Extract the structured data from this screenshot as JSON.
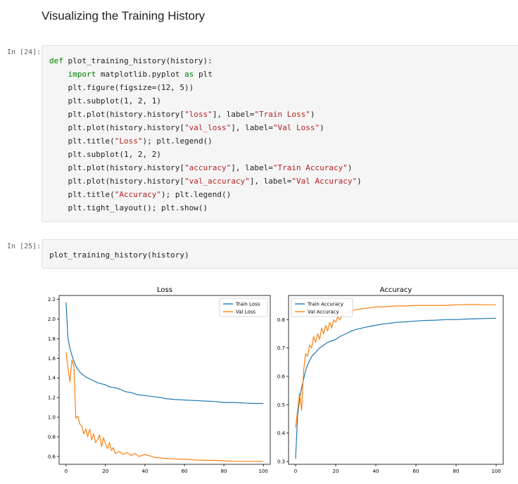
{
  "markdown": {
    "heading": "Visualizing the Training History"
  },
  "cells": [
    {
      "prompt": "In [24]:",
      "lines": [
        [
          [
            "kw",
            "def"
          ],
          [
            "p",
            " plot_training_history(history):"
          ]
        ],
        [
          [
            "p",
            "    "
          ],
          [
            "kw",
            "import"
          ],
          [
            "p",
            " matplotlib.pyplot "
          ],
          [
            "kw",
            "as"
          ],
          [
            "p",
            " plt"
          ]
        ],
        [
          [
            "p",
            "    plt.figure(figsize=(12, 5))"
          ]
        ],
        [
          [
            "p",
            "    plt.subplot(1, 2, 1)"
          ]
        ],
        [
          [
            "p",
            "    plt.plot(history.history["
          ],
          [
            "str",
            "\"loss\""
          ],
          [
            "p",
            "], label="
          ],
          [
            "str",
            "\"Train Loss\""
          ],
          [
            "p",
            ")"
          ]
        ],
        [
          [
            "p",
            "    plt.plot(history.history["
          ],
          [
            "str",
            "\"val_loss\""
          ],
          [
            "p",
            "], label="
          ],
          [
            "str",
            "\"Val Loss\""
          ],
          [
            "p",
            ")"
          ]
        ],
        [
          [
            "p",
            "    plt.title("
          ],
          [
            "str",
            "\"Loss\""
          ],
          [
            "p",
            "); plt.legend()"
          ]
        ],
        [
          [
            "p",
            "    plt.subplot(1, 2, 2)"
          ]
        ],
        [
          [
            "p",
            "    plt.plot(history.history["
          ],
          [
            "str",
            "\"accuracy\""
          ],
          [
            "p",
            "], label="
          ],
          [
            "str",
            "\"Train Accuracy\""
          ],
          [
            "p",
            ")"
          ]
        ],
        [
          [
            "p",
            "    plt.plot(history.history["
          ],
          [
            "str",
            "\"val_accuracy\""
          ],
          [
            "p",
            "], label="
          ],
          [
            "str",
            "\"Val Accuracy\""
          ],
          [
            "p",
            ")"
          ]
        ],
        [
          [
            "p",
            "    plt.title("
          ],
          [
            "str",
            "\"Accuracy\""
          ],
          [
            "p",
            "); plt.legend()"
          ]
        ],
        [
          [
            "p",
            "    plt.tight_layout(); plt.show()"
          ]
        ]
      ]
    },
    {
      "prompt": "In [25]:",
      "lines": [
        [
          [
            "p",
            "plot_training_history(history)"
          ]
        ]
      ]
    }
  ],
  "colors": {
    "train": "#1f77b4",
    "val": "#ff7f0e"
  },
  "chart_data": [
    {
      "type": "line",
      "title": "Loss",
      "xlim": [
        -3.5,
        103.5
      ],
      "ylim": [
        0.52,
        2.24
      ],
      "xticks": [
        0,
        20,
        40,
        60,
        80,
        100
      ],
      "yticks": [
        0.6,
        0.8,
        1.0,
        1.2,
        1.4,
        1.6,
        1.8,
        2.0,
        2.2
      ],
      "ytick_labels": [
        "0.6",
        "0.8",
        "1.0",
        "1.2",
        "1.4",
        "1.6",
        "1.8",
        "2.0",
        "2.2"
      ],
      "legend": "top-right",
      "series": [
        {
          "name": "Train Loss",
          "x": [
            0,
            1,
            2,
            3,
            4,
            5,
            6,
            7,
            8,
            10,
            12,
            14,
            16,
            18,
            20,
            22,
            25,
            28,
            30,
            33,
            36,
            40,
            44,
            48,
            50,
            55,
            60,
            65,
            70,
            75,
            80,
            85,
            90,
            95,
            100
          ],
          "y": [
            2.17,
            1.8,
            1.7,
            1.63,
            1.57,
            1.52,
            1.49,
            1.46,
            1.44,
            1.41,
            1.39,
            1.37,
            1.35,
            1.34,
            1.33,
            1.31,
            1.3,
            1.28,
            1.26,
            1.25,
            1.23,
            1.22,
            1.21,
            1.2,
            1.19,
            1.18,
            1.175,
            1.17,
            1.165,
            1.16,
            1.15,
            1.15,
            1.145,
            1.14,
            1.14
          ]
        },
        {
          "name": "Val Loss",
          "x": [
            0,
            1,
            2,
            3,
            4,
            5,
            6,
            7,
            8,
            9,
            10,
            11,
            12,
            13,
            14,
            15,
            16,
            17,
            18,
            19,
            20,
            21,
            22,
            23,
            24,
            25,
            27,
            29,
            31,
            33,
            35,
            37,
            40,
            45,
            50,
            55,
            60,
            65,
            70,
            75,
            80,
            85,
            90,
            95,
            100
          ],
          "y": [
            1.66,
            1.51,
            1.36,
            1.58,
            1.52,
            0.99,
            1.01,
            0.93,
            0.91,
            0.83,
            0.88,
            0.8,
            0.88,
            0.77,
            0.83,
            0.74,
            0.77,
            0.82,
            0.7,
            0.79,
            0.73,
            0.68,
            0.74,
            0.66,
            0.69,
            0.63,
            0.65,
            0.62,
            0.64,
            0.61,
            0.63,
            0.6,
            0.62,
            0.59,
            0.58,
            0.575,
            0.57,
            0.565,
            0.56,
            0.56,
            0.555,
            0.55,
            0.55,
            0.55,
            0.55
          ]
        }
      ]
    },
    {
      "type": "line",
      "title": "Accuracy",
      "xlim": [
        -3.5,
        103.5
      ],
      "ylim": [
        0.29,
        0.885
      ],
      "xticks": [
        0,
        20,
        40,
        60,
        80,
        100
      ],
      "yticks": [
        0.3,
        0.4,
        0.5,
        0.6,
        0.7,
        0.8
      ],
      "ytick_labels": [
        "0.3",
        "0.4",
        "0.5",
        "0.6",
        "0.7",
        "0.8"
      ],
      "legend": "top-left",
      "series": [
        {
          "name": "Train Accuracy",
          "x": [
            0,
            1,
            2,
            3,
            4,
            5,
            6,
            7,
            8,
            10,
            12,
            14,
            16,
            18,
            20,
            22,
            25,
            28,
            30,
            33,
            36,
            40,
            44,
            48,
            50,
            55,
            60,
            65,
            70,
            75,
            80,
            85,
            90,
            95,
            100
          ],
          "y": [
            0.31,
            0.46,
            0.52,
            0.56,
            0.59,
            0.62,
            0.64,
            0.655,
            0.67,
            0.685,
            0.7,
            0.71,
            0.72,
            0.725,
            0.73,
            0.74,
            0.75,
            0.76,
            0.765,
            0.77,
            0.775,
            0.78,
            0.785,
            0.788,
            0.79,
            0.792,
            0.795,
            0.797,
            0.798,
            0.8,
            0.8,
            0.802,
            0.803,
            0.804,
            0.805
          ]
        },
        {
          "name": "Val Accuracy",
          "x": [
            0,
            1,
            2,
            3,
            4,
            5,
            6,
            7,
            8,
            9,
            10,
            11,
            12,
            13,
            14,
            15,
            16,
            17,
            18,
            19,
            20,
            21,
            22,
            24,
            26,
            28,
            30,
            32,
            35,
            38,
            40,
            45,
            50,
            55,
            60,
            65,
            70,
            75,
            80,
            85,
            90,
            95,
            100
          ],
          "y": [
            0.42,
            0.48,
            0.54,
            0.48,
            0.62,
            0.68,
            0.67,
            0.71,
            0.7,
            0.74,
            0.72,
            0.75,
            0.73,
            0.77,
            0.75,
            0.78,
            0.76,
            0.79,
            0.77,
            0.8,
            0.79,
            0.81,
            0.8,
            0.82,
            0.825,
            0.83,
            0.835,
            0.837,
            0.84,
            0.842,
            0.845,
            0.845,
            0.848,
            0.848,
            0.85,
            0.85,
            0.85,
            0.85,
            0.852,
            0.853,
            0.853,
            0.852,
            0.852
          ]
        }
      ]
    }
  ]
}
